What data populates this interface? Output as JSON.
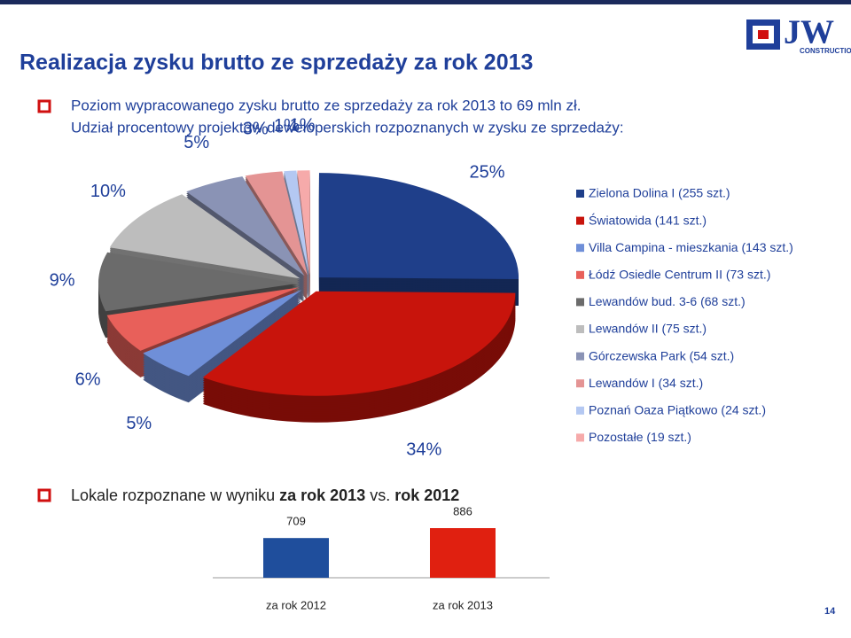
{
  "slide": {
    "title": "Realizacja zysku brutto ze sprzedaży za rok 2013",
    "bullet1": [
      "Poziom wypracowanego zysku brutto ze sprzedaży za rok 2013 to 69 mln zł.",
      "Udział procentowy projektów deweloperskich rozpoznanych w zysku ze sprzedaży:"
    ],
    "bullet2": {
      "text": "Lokale rozpoznane w wyniku ",
      "bold1": "za rok 2013",
      "mid": " vs. ",
      "bold2": "rok 2012"
    },
    "logo": {
      "mark": "JW",
      "sub": "CONSTRUCTION"
    },
    "page_number": "14"
  },
  "chart_data": [
    {
      "type": "pie",
      "categories": [
        "Zielona Dolina I (255 szt.)",
        "Światowida (141 szt.)",
        "Villa Campina - mieszkania (143 szt.)",
        "Łódź Osiedle Centrum II (73 szt.)",
        "Lewandów bud. 3-6 (68 szt.)",
        "Lewandów II (75 szt.)",
        "Górczewska Park (54 szt.)",
        "Lewandów I (34 szt.)",
        "Poznań Oaza Piątkowo (24 szt.)",
        "Pozostałe (19 szt.)"
      ],
      "values": [
        25,
        34,
        5,
        6,
        9,
        10,
        5,
        3,
        1,
        1
      ],
      "value_labels": [
        "25%",
        "34%",
        "5%",
        "6%",
        "9%",
        "10%",
        "5%",
        "3%",
        "1%",
        "1%"
      ],
      "colors": [
        "#1f3f8a",
        "#c8140c",
        "#6f8fd8",
        "#e8605a",
        "#6b6b6b",
        "#bdbdbd",
        "#8a93b5",
        "#e49494",
        "#b4c8f2",
        "#f6aaaa"
      ],
      "legend": "right"
    },
    {
      "type": "bar",
      "categories": [
        "za rok 2012",
        "za rok 2013"
      ],
      "values": [
        709,
        886
      ],
      "colors": [
        "#1f4e9c",
        "#e02010"
      ]
    }
  ]
}
